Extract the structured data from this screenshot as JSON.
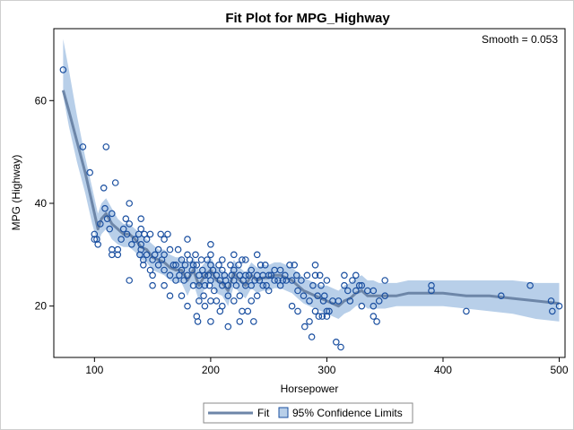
{
  "chart_data": {
    "type": "scatter",
    "title": "Fit Plot for MPG_Highway",
    "xlabel": "Horsepower",
    "ylabel": "MPG (Highway)",
    "annotation": "Smooth = 0.053",
    "xlim": [
      65,
      505
    ],
    "ylim": [
      10,
      74
    ],
    "x_ticks": [
      100,
      200,
      300,
      400,
      500
    ],
    "y_ticks": [
      20,
      40,
      60
    ],
    "grid": false,
    "legend_position": "bottom",
    "legend": [
      "Fit",
      "95% Confidence Limits"
    ],
    "colors": {
      "points": "#1a4fa0",
      "fit_line": "#6d86a8",
      "band": "#b8cfe9",
      "frame": "#000000"
    },
    "scatter_points": [
      [
        73,
        66
      ],
      [
        90,
        51
      ],
      [
        96,
        46
      ],
      [
        100,
        34
      ],
      [
        100,
        33
      ],
      [
        102,
        33
      ],
      [
        103,
        32
      ],
      [
        105,
        36
      ],
      [
        108,
        43
      ],
      [
        109,
        39
      ],
      [
        110,
        51
      ],
      [
        111,
        37
      ],
      [
        113,
        35
      ],
      [
        115,
        38
      ],
      [
        115,
        31
      ],
      [
        115,
        30
      ],
      [
        118,
        44
      ],
      [
        120,
        31
      ],
      [
        120,
        30
      ],
      [
        123,
        33
      ],
      [
        125,
        35
      ],
      [
        127,
        37
      ],
      [
        128,
        34
      ],
      [
        130,
        40
      ],
      [
        130,
        36
      ],
      [
        130,
        25
      ],
      [
        132,
        32
      ],
      [
        135,
        33
      ],
      [
        138,
        34
      ],
      [
        139,
        30
      ],
      [
        140,
        37
      ],
      [
        140,
        35
      ],
      [
        140,
        32
      ],
      [
        140,
        31
      ],
      [
        142,
        29
      ],
      [
        142,
        28
      ],
      [
        143,
        34
      ],
      [
        145,
        33
      ],
      [
        145,
        30
      ],
      [
        148,
        34
      ],
      [
        148,
        27
      ],
      [
        150,
        29
      ],
      [
        150,
        26
      ],
      [
        150,
        24
      ],
      [
        152,
        30
      ],
      [
        155,
        31
      ],
      [
        155,
        28
      ],
      [
        157,
        34
      ],
      [
        158,
        29
      ],
      [
        160,
        33
      ],
      [
        160,
        30
      ],
      [
        160,
        27
      ],
      [
        160,
        24
      ],
      [
        163,
        34
      ],
      [
        165,
        31
      ],
      [
        165,
        26
      ],
      [
        165,
        22
      ],
      [
        168,
        28
      ],
      [
        170,
        28
      ],
      [
        170,
        25
      ],
      [
        172,
        31
      ],
      [
        173,
        26
      ],
      [
        175,
        29
      ],
      [
        175,
        27
      ],
      [
        175,
        22
      ],
      [
        177,
        25
      ],
      [
        178,
        28
      ],
      [
        180,
        33
      ],
      [
        180,
        30
      ],
      [
        180,
        26
      ],
      [
        180,
        20
      ],
      [
        182,
        29
      ],
      [
        184,
        27
      ],
      [
        185,
        28
      ],
      [
        185,
        24
      ],
      [
        187,
        30
      ],
      [
        188,
        28
      ],
      [
        188,
        18
      ],
      [
        189,
        17
      ],
      [
        190,
        26
      ],
      [
        190,
        24
      ],
      [
        190,
        21
      ],
      [
        192,
        29
      ],
      [
        193,
        27
      ],
      [
        194,
        22
      ],
      [
        195,
        26
      ],
      [
        195,
        24
      ],
      [
        195,
        20
      ],
      [
        197,
        29
      ],
      [
        198,
        26
      ],
      [
        199,
        24
      ],
      [
        200,
        32
      ],
      [
        200,
        30
      ],
      [
        200,
        28
      ],
      [
        200,
        25
      ],
      [
        200,
        21
      ],
      [
        200,
        17
      ],
      [
        202,
        27
      ],
      [
        203,
        23
      ],
      [
        205,
        26
      ],
      [
        205,
        21
      ],
      [
        207,
        28
      ],
      [
        208,
        25
      ],
      [
        208,
        19
      ],
      [
        210,
        29
      ],
      [
        210,
        27
      ],
      [
        210,
        24
      ],
      [
        210,
        20
      ],
      [
        212,
        26
      ],
      [
        213,
        25
      ],
      [
        215,
        24
      ],
      [
        215,
        16
      ],
      [
        215,
        22
      ],
      [
        217,
        28
      ],
      [
        218,
        26
      ],
      [
        220,
        30
      ],
      [
        220,
        27
      ],
      [
        220,
        25
      ],
      [
        220,
        21
      ],
      [
        222,
        24
      ],
      [
        224,
        28
      ],
      [
        225,
        26
      ],
      [
        225,
        22
      ],
      [
        225,
        17
      ],
      [
        227,
        29
      ],
      [
        227,
        19
      ],
      [
        228,
        25
      ],
      [
        230,
        29
      ],
      [
        230,
        26
      ],
      [
        230,
        24
      ],
      [
        232,
        19
      ],
      [
        233,
        26
      ],
      [
        235,
        27
      ],
      [
        235,
        24
      ],
      [
        235,
        21
      ],
      [
        237,
        17
      ],
      [
        238,
        25
      ],
      [
        240,
        30
      ],
      [
        240,
        26
      ],
      [
        240,
        22
      ],
      [
        242,
        25
      ],
      [
        243,
        28
      ],
      [
        245,
        26
      ],
      [
        245,
        24
      ],
      [
        247,
        28
      ],
      [
        248,
        24
      ],
      [
        250,
        26
      ],
      [
        250,
        23
      ],
      [
        252,
        26
      ],
      [
        255,
        27
      ],
      [
        255,
        25
      ],
      [
        258,
        25
      ],
      [
        260,
        27
      ],
      [
        260,
        24
      ],
      [
        262,
        25
      ],
      [
        264,
        26
      ],
      [
        265,
        25
      ],
      [
        268,
        28
      ],
      [
        270,
        25
      ],
      [
        270,
        20
      ],
      [
        272,
        28
      ],
      [
        274,
        26
      ],
      [
        275,
        23
      ],
      [
        275,
        19
      ],
      [
        278,
        25
      ],
      [
        280,
        22
      ],
      [
        281,
        16
      ],
      [
        283,
        26
      ],
      [
        285,
        21
      ],
      [
        285,
        17
      ],
      [
        287,
        14
      ],
      [
        288,
        24
      ],
      [
        290,
        28
      ],
      [
        290,
        26
      ],
      [
        290,
        19
      ],
      [
        292,
        22
      ],
      [
        293,
        18
      ],
      [
        294,
        26
      ],
      [
        295,
        24
      ],
      [
        296,
        18
      ],
      [
        297,
        21
      ],
      [
        298,
        22
      ],
      [
        300,
        25
      ],
      [
        300,
        19
      ],
      [
        300,
        18
      ],
      [
        302,
        19
      ],
      [
        305,
        21
      ],
      [
        308,
        13
      ],
      [
        310,
        21
      ],
      [
        312,
        12
      ],
      [
        315,
        26
      ],
      [
        315,
        24
      ],
      [
        318,
        23
      ],
      [
        320,
        21
      ],
      [
        322,
        25
      ],
      [
        325,
        26
      ],
      [
        325,
        23
      ],
      [
        328,
        24
      ],
      [
        330,
        24
      ],
      [
        330,
        20
      ],
      [
        335,
        23
      ],
      [
        340,
        23
      ],
      [
        340,
        20
      ],
      [
        340,
        18
      ],
      [
        343,
        17
      ],
      [
        345,
        21
      ],
      [
        350,
        25
      ],
      [
        350,
        22
      ],
      [
        390,
        24
      ],
      [
        390,
        23
      ],
      [
        420,
        19
      ],
      [
        450,
        22
      ],
      [
        475,
        24
      ],
      [
        493,
        21
      ],
      [
        494,
        19
      ],
      [
        500,
        20
      ]
    ],
    "fit_line": [
      [
        73,
        62
      ],
      [
        78,
        58
      ],
      [
        85,
        52
      ],
      [
        92,
        46
      ],
      [
        98,
        40
      ],
      [
        103,
        35
      ],
      [
        106,
        37
      ],
      [
        110,
        38
      ],
      [
        115,
        36
      ],
      [
        120,
        35
      ],
      [
        125,
        34
      ],
      [
        130,
        34
      ],
      [
        135,
        33
      ],
      [
        140,
        31.5
      ],
      [
        145,
        31
      ],
      [
        150,
        29.5
      ],
      [
        155,
        29
      ],
      [
        160,
        28.5
      ],
      [
        165,
        27.5
      ],
      [
        170,
        27
      ],
      [
        175,
        27
      ],
      [
        180,
        25
      ],
      [
        185,
        27
      ],
      [
        190,
        24
      ],
      [
        195,
        26
      ],
      [
        200,
        27
      ],
      [
        205,
        25
      ],
      [
        210,
        24.5
      ],
      [
        215,
        23
      ],
      [
        220,
        26.5
      ],
      [
        225,
        25
      ],
      [
        230,
        24
      ],
      [
        235,
        26
      ],
      [
        240,
        25
      ],
      [
        245,
        25.5
      ],
      [
        250,
        25.5
      ],
      [
        255,
        26
      ],
      [
        260,
        26
      ],
      [
        265,
        25.5
      ],
      [
        270,
        25
      ],
      [
        275,
        24
      ],
      [
        280,
        23
      ],
      [
        285,
        22.5
      ],
      [
        290,
        22
      ],
      [
        295,
        21.5
      ],
      [
        300,
        21
      ],
      [
        305,
        20.5
      ],
      [
        310,
        20
      ],
      [
        315,
        21
      ],
      [
        320,
        21.5
      ],
      [
        325,
        22.5
      ],
      [
        330,
        23
      ],
      [
        335,
        22
      ],
      [
        340,
        22
      ],
      [
        345,
        22
      ],
      [
        350,
        22
      ],
      [
        360,
        22
      ],
      [
        370,
        22.5
      ],
      [
        380,
        22.5
      ],
      [
        390,
        22.5
      ],
      [
        400,
        22.5
      ],
      [
        420,
        22
      ],
      [
        440,
        22
      ],
      [
        460,
        21.5
      ],
      [
        480,
        21
      ],
      [
        500,
        20.5
      ]
    ],
    "band_upper": [
      [
        73,
        72
      ],
      [
        78,
        66
      ],
      [
        85,
        57
      ],
      [
        92,
        49
      ],
      [
        98,
        43
      ],
      [
        103,
        38
      ],
      [
        106,
        40
      ],
      [
        110,
        41
      ],
      [
        115,
        39
      ],
      [
        120,
        37
      ],
      [
        125,
        36
      ],
      [
        130,
        36
      ],
      [
        135,
        35
      ],
      [
        140,
        34
      ],
      [
        145,
        33
      ],
      [
        150,
        32
      ],
      [
        155,
        31
      ],
      [
        160,
        31
      ],
      [
        165,
        30
      ],
      [
        170,
        29.5
      ],
      [
        175,
        29.5
      ],
      [
        180,
        28
      ],
      [
        185,
        29.5
      ],
      [
        190,
        27
      ],
      [
        195,
        28.5
      ],
      [
        200,
        29.5
      ],
      [
        205,
        27.5
      ],
      [
        210,
        27
      ],
      [
        215,
        26
      ],
      [
        220,
        29
      ],
      [
        225,
        27.5
      ],
      [
        230,
        26.5
      ],
      [
        235,
        28.5
      ],
      [
        240,
        27.5
      ],
      [
        245,
        28
      ],
      [
        250,
        28
      ],
      [
        255,
        28.5
      ],
      [
        260,
        28.5
      ],
      [
        265,
        28
      ],
      [
        270,
        27.5
      ],
      [
        275,
        26.5
      ],
      [
        280,
        25.5
      ],
      [
        285,
        25
      ],
      [
        290,
        24.5
      ],
      [
        295,
        24
      ],
      [
        300,
        24
      ],
      [
        305,
        23.5
      ],
      [
        310,
        23
      ],
      [
        315,
        24
      ],
      [
        320,
        24.5
      ],
      [
        325,
        25.5
      ],
      [
        330,
        26
      ],
      [
        335,
        25
      ],
      [
        340,
        25
      ],
      [
        345,
        24.5
      ],
      [
        350,
        24.5
      ],
      [
        360,
        24.5
      ],
      [
        370,
        25
      ],
      [
        380,
        25
      ],
      [
        390,
        25
      ],
      [
        400,
        25
      ],
      [
        420,
        25
      ],
      [
        440,
        25
      ],
      [
        460,
        25
      ],
      [
        480,
        24.5
      ],
      [
        500,
        24.5
      ]
    ],
    "band_lower": [
      [
        73,
        61
      ],
      [
        78,
        55
      ],
      [
        85,
        48
      ],
      [
        92,
        42
      ],
      [
        98,
        36
      ],
      [
        103,
        32
      ],
      [
        106,
        34
      ],
      [
        110,
        35
      ],
      [
        115,
        33
      ],
      [
        120,
        32
      ],
      [
        125,
        31.5
      ],
      [
        130,
        31.5
      ],
      [
        135,
        30.5
      ],
      [
        140,
        29
      ],
      [
        145,
        28.5
      ],
      [
        150,
        27
      ],
      [
        155,
        26.5
      ],
      [
        160,
        26
      ],
      [
        165,
        25
      ],
      [
        170,
        24.5
      ],
      [
        175,
        24.5
      ],
      [
        180,
        22
      ],
      [
        185,
        24.5
      ],
      [
        190,
        21
      ],
      [
        195,
        23.5
      ],
      [
        200,
        24.5
      ],
      [
        205,
        22.5
      ],
      [
        210,
        22
      ],
      [
        215,
        20
      ],
      [
        220,
        24
      ],
      [
        225,
        22.5
      ],
      [
        230,
        21.5
      ],
      [
        235,
        23.5
      ],
      [
        240,
        22.5
      ],
      [
        245,
        23
      ],
      [
        250,
        23
      ],
      [
        255,
        23.5
      ],
      [
        260,
        23.5
      ],
      [
        265,
        23
      ],
      [
        270,
        22.5
      ],
      [
        275,
        21.5
      ],
      [
        280,
        20.5
      ],
      [
        285,
        20
      ],
      [
        290,
        19.5
      ],
      [
        295,
        19
      ],
      [
        300,
        18.5
      ],
      [
        305,
        18
      ],
      [
        310,
        17.5
      ],
      [
        315,
        18.5
      ],
      [
        320,
        19
      ],
      [
        325,
        20
      ],
      [
        330,
        20.5
      ],
      [
        335,
        19.5
      ],
      [
        340,
        19.5
      ],
      [
        345,
        19.5
      ],
      [
        350,
        19.5
      ],
      [
        360,
        20
      ],
      [
        370,
        20
      ],
      [
        380,
        20
      ],
      [
        390,
        20
      ],
      [
        400,
        20
      ],
      [
        420,
        19.5
      ],
      [
        440,
        19
      ],
      [
        460,
        18.5
      ],
      [
        480,
        17.5
      ],
      [
        500,
        17
      ]
    ]
  }
}
